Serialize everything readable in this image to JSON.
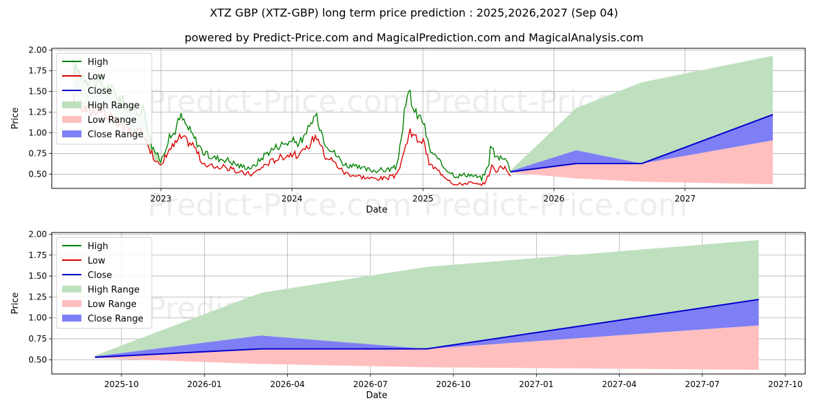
{
  "title": "XTZ GBP (XTZ-GBP) long term price prediction : 2025,2026,2027 (Sep 04)",
  "subtitle": "powered by Predict-Price.com and MagicalPrediction.com and MagicalAnalysis.com",
  "watermark": "Predict-Price.com",
  "colors": {
    "high": "#008000",
    "low": "#dd0000",
    "close": "#0000cc",
    "high_range": "#bfe0bf",
    "low_range": "#ffbfbf",
    "close_range": "#7f7ff5",
    "grid": "#b0b0b0"
  },
  "chart_data": [
    {
      "id": "top",
      "type": "line",
      "xlabel": "Date",
      "ylabel": "Price",
      "xlim": [
        2022.167,
        2027.917
      ],
      "ylim": [
        0.33,
        2.02
      ],
      "yticks": [
        "0.50",
        "0.75",
        "1.00",
        "1.25",
        "1.50",
        "1.75",
        "2.00"
      ],
      "xticks": [
        "2023",
        "2024",
        "2025",
        "2026",
        "2027"
      ],
      "xtick_values": [
        2023,
        2024,
        2025,
        2026,
        2027
      ],
      "grid": true,
      "legend": [
        "High",
        "Low",
        "Close",
        "High Range",
        "Low Range",
        "Close Range"
      ],
      "legend_position": "top-left",
      "history": {
        "x": [
          2022.33,
          2022.4,
          2022.47,
          2022.53,
          2022.6,
          2022.67,
          2022.73,
          2022.8,
          2022.87,
          2022.93,
          2023.0,
          2023.05,
          2023.1,
          2023.15,
          2023.25,
          2023.33,
          2023.4,
          2023.5,
          2023.6,
          2023.7,
          2023.8,
          2023.9,
          2024.0,
          2024.05,
          2024.1,
          2024.17,
          2024.2,
          2024.25,
          2024.3,
          2024.4,
          2024.5,
          2024.6,
          2024.7,
          2024.8,
          2024.86,
          2024.9,
          2024.93,
          2025.0,
          2025.05,
          2025.15,
          2025.25,
          2025.35,
          2025.45,
          2025.5,
          2025.52,
          2025.55,
          2025.62,
          2025.67
        ],
        "high": [
          1.8,
          1.7,
          1.65,
          1.6,
          1.55,
          1.45,
          1.35,
          1.25,
          1.3,
          0.85,
          0.65,
          0.9,
          1.0,
          1.2,
          0.95,
          0.75,
          0.7,
          0.68,
          0.6,
          0.58,
          0.75,
          0.85,
          0.9,
          0.88,
          0.95,
          1.2,
          1.15,
          0.9,
          0.8,
          0.62,
          0.58,
          0.55,
          0.55,
          0.58,
          1.25,
          1.5,
          1.25,
          1.15,
          0.8,
          0.6,
          0.48,
          0.5,
          0.45,
          0.6,
          0.9,
          0.7,
          0.72,
          0.55
        ],
        "low": [
          1.4,
          1.3,
          1.25,
          1.3,
          1.2,
          1.1,
          1.05,
          1.0,
          1.0,
          0.75,
          0.58,
          0.78,
          0.85,
          0.95,
          0.85,
          0.6,
          0.6,
          0.58,
          0.52,
          0.5,
          0.62,
          0.7,
          0.75,
          0.72,
          0.78,
          0.95,
          0.95,
          0.72,
          0.68,
          0.52,
          0.48,
          0.45,
          0.45,
          0.48,
          0.8,
          1.0,
          0.95,
          0.9,
          0.62,
          0.5,
          0.37,
          0.4,
          0.36,
          0.48,
          0.6,
          0.55,
          0.58,
          0.5
        ]
      },
      "prediction": {
        "x": [
          2025.67,
          2026.17,
          2026.67,
          2027.67
        ],
        "high_range_upper": [
          0.55,
          1.3,
          1.61,
          1.93
        ],
        "low_range_lower": [
          0.52,
          0.45,
          0.41,
          0.38
        ],
        "close_range_upper": [
          0.54,
          0.79,
          0.63,
          1.22
        ],
        "close_range_lower": [
          0.53,
          0.63,
          0.63,
          0.91
        ],
        "close": [
          0.53,
          0.63,
          0.63,
          1.22
        ]
      }
    },
    {
      "id": "bottom",
      "type": "line",
      "xlabel": "Date",
      "ylabel": "Price",
      "xlim": [
        2025.54,
        2027.81
      ],
      "ylim": [
        0.33,
        2.02
      ],
      "yticks": [
        "0.50",
        "0.75",
        "1.00",
        "1.25",
        "1.50",
        "1.75",
        "2.00"
      ],
      "xticks": [
        "2025-10",
        "2026-01",
        "2026-04",
        "2026-07",
        "2026-10",
        "2027-01",
        "2027-04",
        "2027-07",
        "2027-10"
      ],
      "xtick_values": [
        2025.75,
        2026.0,
        2026.25,
        2026.5,
        2026.75,
        2027.0,
        2027.25,
        2027.5,
        2027.75
      ],
      "grid": true,
      "legend": [
        "High",
        "Low",
        "Close",
        "High Range",
        "Low Range",
        "Close Range"
      ],
      "legend_position": "top-left",
      "prediction": {
        "x": [
          2025.67,
          2026.17,
          2026.67,
          2027.67
        ],
        "high_range_upper": [
          0.55,
          1.3,
          1.61,
          1.93
        ],
        "low_range_lower": [
          0.52,
          0.45,
          0.41,
          0.38
        ],
        "close_range_upper": [
          0.54,
          0.79,
          0.63,
          1.22
        ],
        "close_range_lower": [
          0.53,
          0.63,
          0.63,
          0.91
        ],
        "close": [
          0.53,
          0.63,
          0.63,
          1.22
        ]
      }
    }
  ]
}
